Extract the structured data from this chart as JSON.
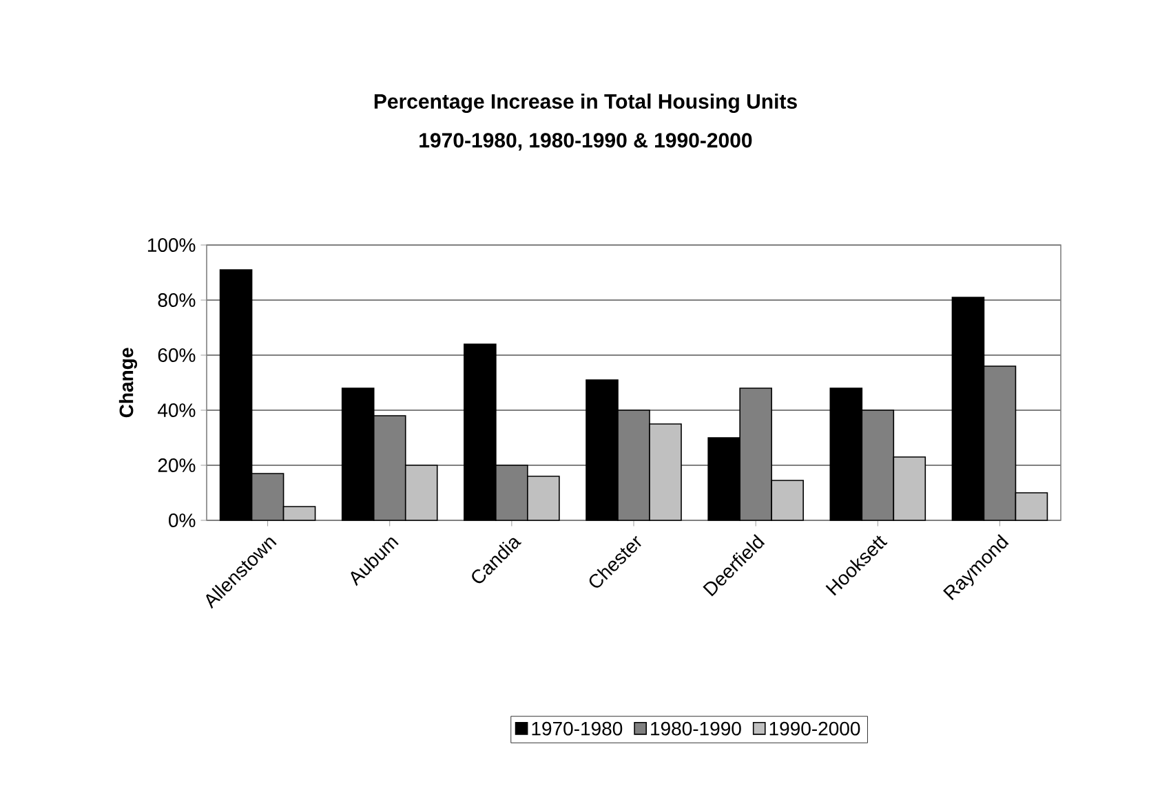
{
  "chart_data": {
    "type": "bar",
    "title": "Percentage Increase in Total Housing Units",
    "subtitle": "1970-1980, 1980-1990 & 1990-2000",
    "ylabel": "Change",
    "categories": [
      "Allenstown",
      "Aubum",
      "Candia",
      "Chester",
      "Deerfield",
      "Hooksett",
      "Raymond"
    ],
    "series": [
      {
        "name": "1970-1980",
        "color": "#000000",
        "values": [
          91,
          48,
          64,
          51,
          30,
          48,
          81
        ]
      },
      {
        "name": "1980-1990",
        "color": "#808080",
        "values": [
          17,
          38,
          20,
          40,
          48,
          40,
          56
        ]
      },
      {
        "name": "1990-2000",
        "color": "#c0c0c0",
        "values": [
          5,
          20,
          16,
          35,
          14.5,
          23,
          10
        ]
      }
    ],
    "ylim": [
      0,
      100
    ],
    "yticks": [
      {
        "value": 0,
        "label": "0%"
      },
      {
        "value": 20,
        "label": "20%"
      },
      {
        "value": 40,
        "label": "40%"
      },
      {
        "value": 60,
        "label": "60%"
      },
      {
        "value": 80,
        "label": "80%"
      },
      {
        "value": 100,
        "label": "100%"
      }
    ],
    "grid": "y",
    "legend": "bottom"
  }
}
